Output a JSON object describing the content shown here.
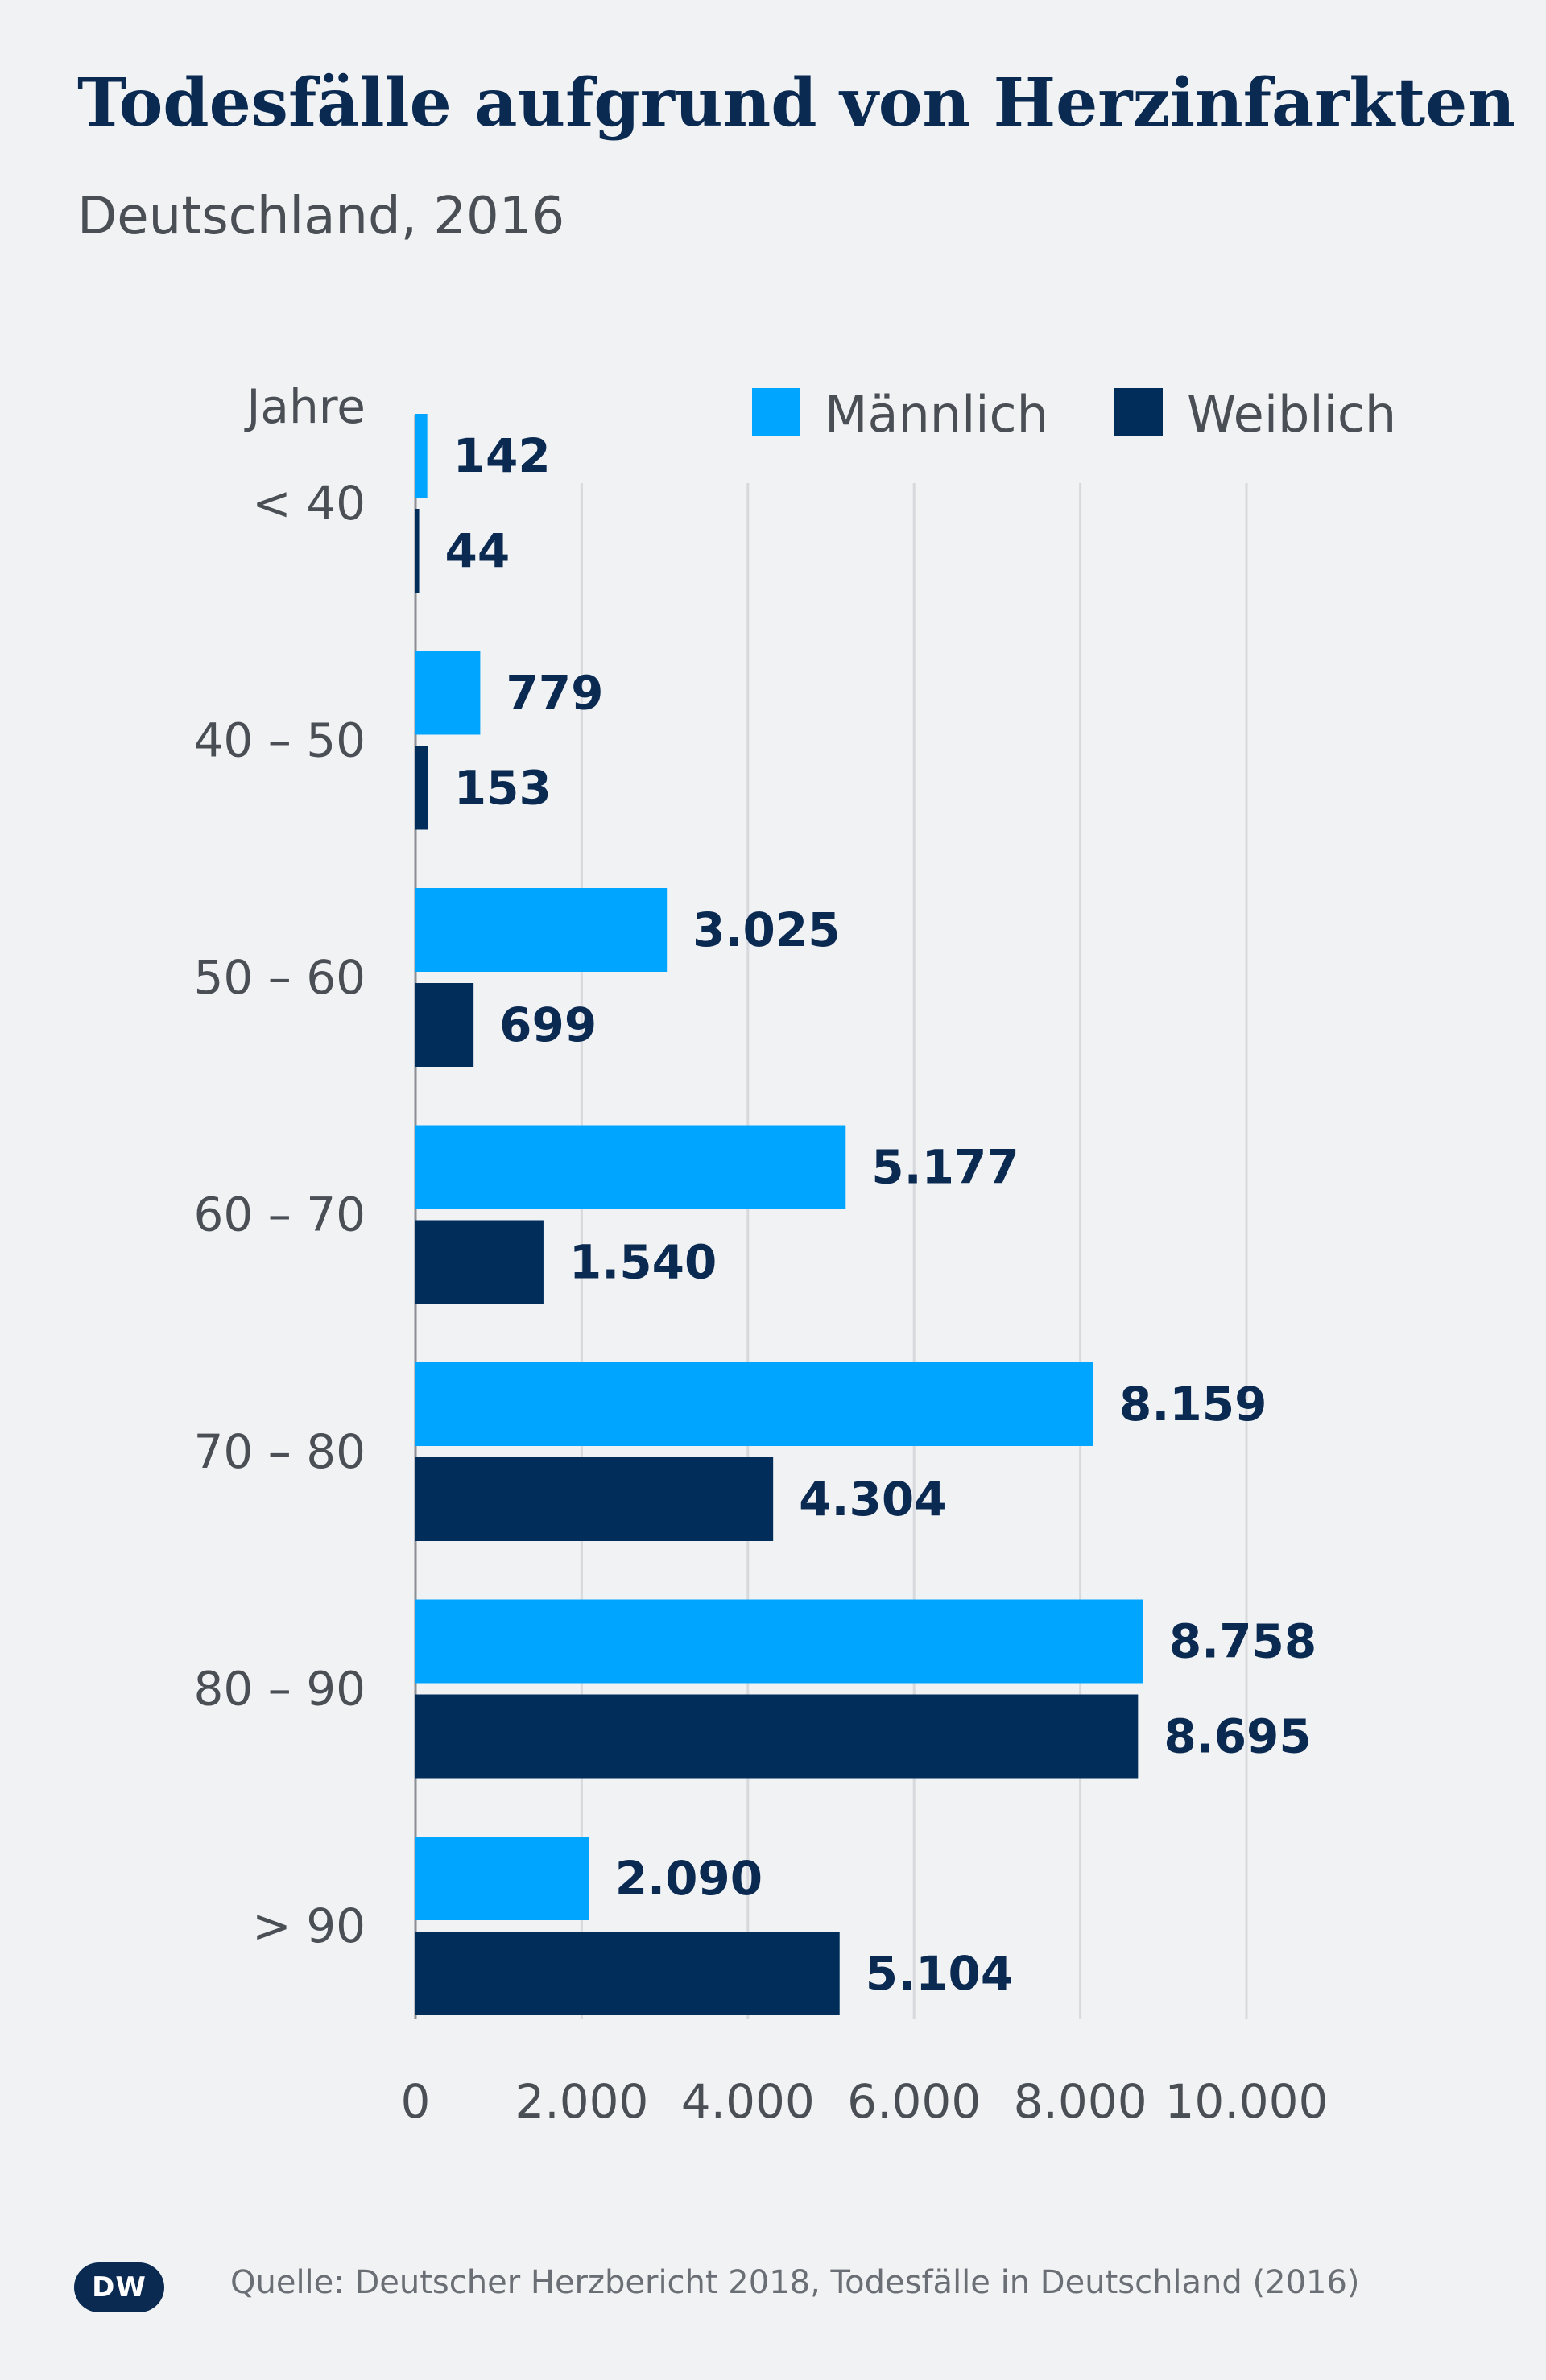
{
  "header": {
    "title": "Todesfälle aufgrund von Herzinfarkten",
    "subtitle": "Deutschland, 2016"
  },
  "footer": {
    "logo_text": "DW",
    "source": "Quelle: Deutscher Herzbericht 2018, Todesfälle in Deutschland (2016)"
  },
  "colors": {
    "background": "#f1f2f4",
    "maennlich": "#00a5ff",
    "weiblich": "#002d5a",
    "label": "#0a2a52",
    "axis_text": "#4a4f55",
    "grid": "#d7d9dd"
  },
  "chart_data": {
    "type": "bar",
    "orientation": "horizontal",
    "ylabel": "Jahre",
    "categories": [
      "< 40",
      "40 – 50",
      "50 – 60",
      "60 – 70",
      "70 – 80",
      "80 – 90",
      "> 90"
    ],
    "series": [
      {
        "name": "Männlich",
        "color": "#00a5ff",
        "values": [
          142,
          779,
          3025,
          5177,
          8159,
          8758,
          2090
        ],
        "labels": [
          "142",
          "779",
          "3.025",
          "5.177",
          "8.159",
          "8.758",
          "2.090"
        ]
      },
      {
        "name": "Weiblich",
        "color": "#002d5a",
        "values": [
          44,
          153,
          699,
          1540,
          4304,
          8695,
          5104
        ],
        "labels": [
          "44",
          "153",
          "699",
          "1.540",
          "4.304",
          "8.695",
          "5.104"
        ]
      }
    ],
    "xlim": [
      0,
      10000
    ],
    "xticks": [
      0,
      2000,
      4000,
      6000,
      8000,
      10000
    ],
    "xtick_labels": [
      "0",
      "2.000",
      "4.000",
      "6.000",
      "8.000",
      "10.000"
    ],
    "grid": true,
    "legend": "top-right"
  }
}
